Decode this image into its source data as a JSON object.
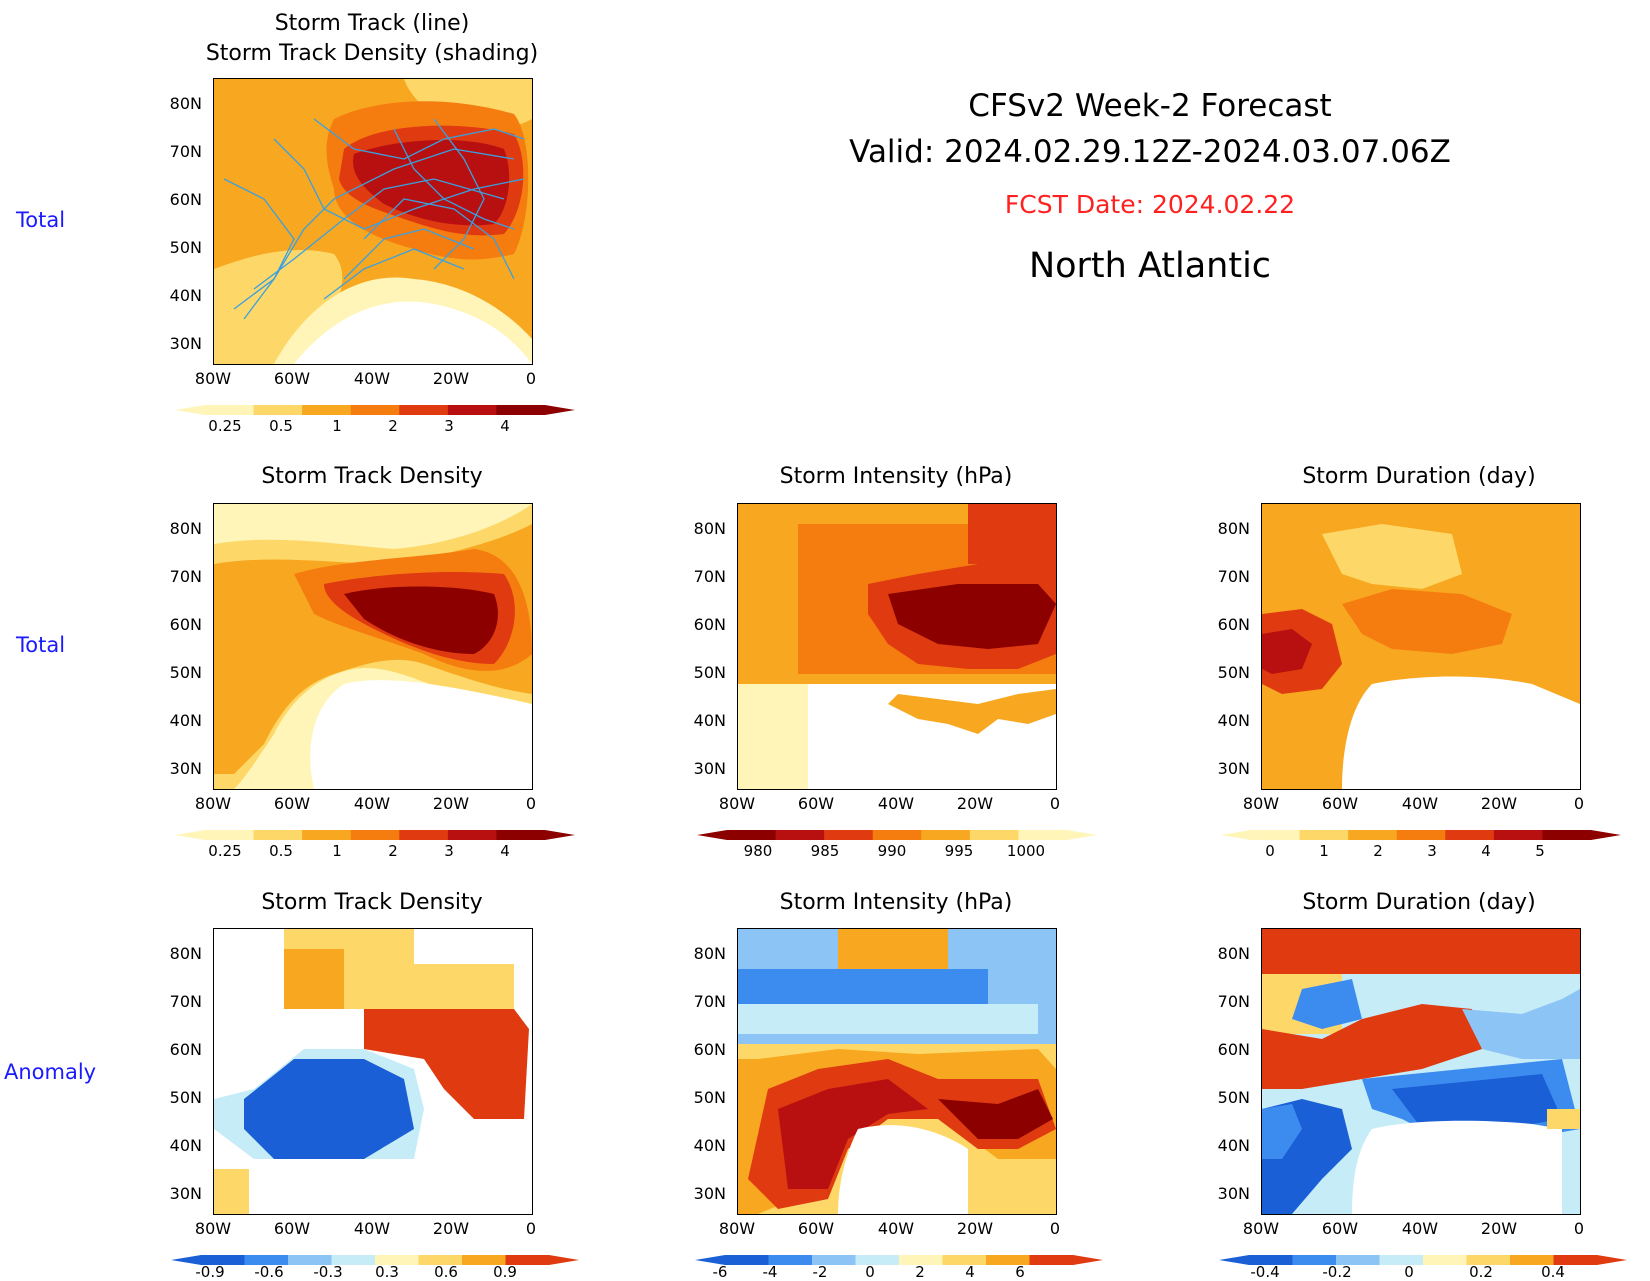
{
  "header": {
    "line1": "CFSv2 Week-2 Forecast",
    "line2": "Valid: 2024.02.29.12Z-2024.03.07.06Z",
    "fcst_date": "FCST Date: 2024.02.22",
    "region": "North Atlantic"
  },
  "row_labels": [
    "Total",
    "Total",
    "Anomaly"
  ],
  "axes": {
    "lat_ticks": [
      "80N",
      "70N",
      "60N",
      "50N",
      "40N",
      "30N"
    ],
    "lon_ticks": [
      "80W",
      "60W",
      "40W",
      "20W",
      "0"
    ]
  },
  "panels": {
    "track_total": {
      "title": "Storm Track (line)\nStorm Track Density (shading)"
    },
    "density_total": {
      "title": "Storm Track Density"
    },
    "intensity_total": {
      "title": "Storm Intensity (hPa)"
    },
    "duration_total": {
      "title": "Storm Duration (day)"
    },
    "density_anom": {
      "title": "Storm Track Density"
    },
    "intensity_anom": {
      "title": "Storm Intensity (hPa)"
    },
    "duration_anom": {
      "title": "Storm Duration (day)"
    }
  },
  "colorbars": {
    "density_total": [
      "0.25",
      "0.5",
      "1",
      "2",
      "3",
      "4"
    ],
    "intensity_total": [
      "980",
      "985",
      "990",
      "995",
      "1000"
    ],
    "duration_total": [
      "0",
      "1",
      "2",
      "3",
      "4",
      "5"
    ],
    "density_anom": [
      "-0.9",
      "-0.6",
      "-0.3",
      "0.3",
      "0.6",
      "0.9"
    ],
    "intensity_anom": [
      "-6",
      "-4",
      "-2",
      "0",
      "2",
      "4",
      "6"
    ],
    "duration_anom": [
      "-0.4",
      "-0.2",
      "0",
      "0.2",
      "0.4"
    ]
  },
  "colors": {
    "warm": [
      "#fff5b8",
      "#fdd868",
      "#f8a820",
      "#f57d10",
      "#e03a10",
      "#b81010",
      "#8c0000"
    ],
    "cool": [
      "#1a5fd6",
      "#3c8cf0",
      "#8cc4f5",
      "#c6ecf8"
    ],
    "track_line": "#3aa0e0",
    "label_blue": "#1a1aff",
    "fcst_red": "#ff2020"
  }
}
